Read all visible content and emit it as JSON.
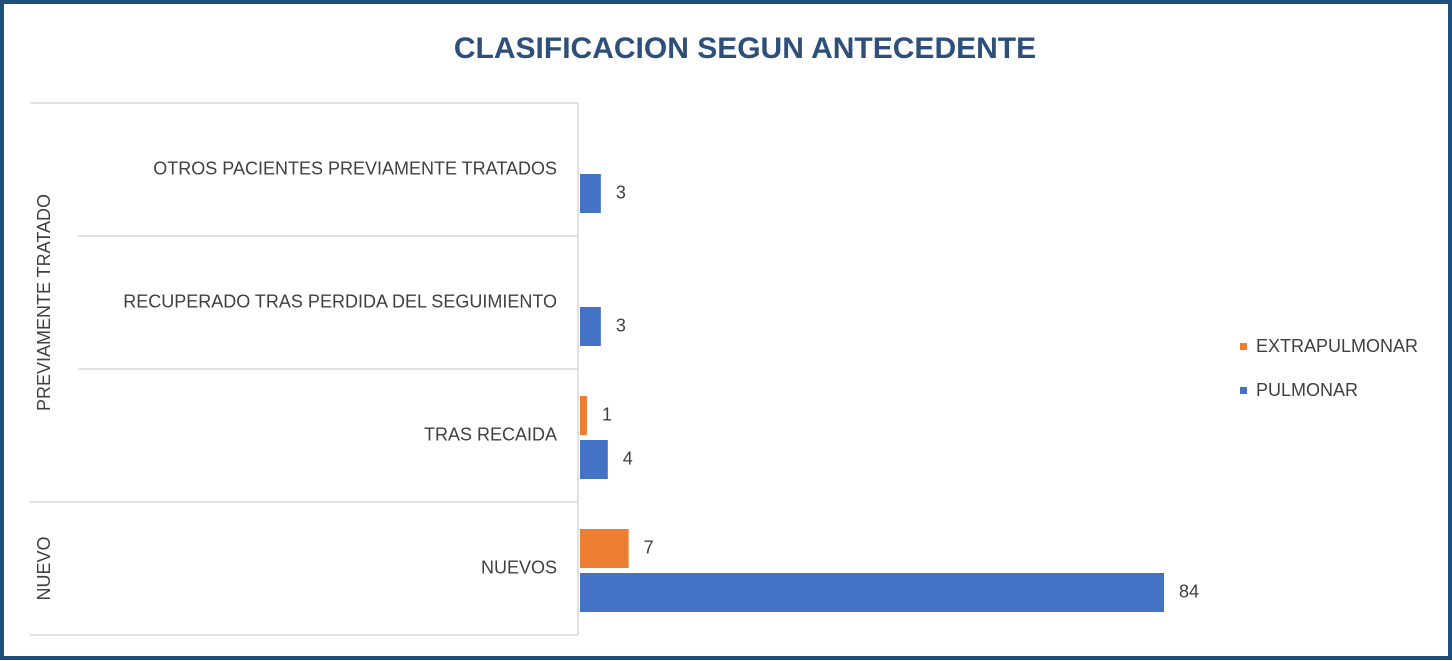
{
  "chart_data": {
    "type": "bar",
    "orientation": "horizontal",
    "title": "CLASIFICACION SEGUN ANTECEDENTE",
    "groups": [
      {
        "name": "PREVIAMENTE TRATADO",
        "categories": [
          "OTROS PACIENTES PREVIAMENTE TRATADOS",
          "RECUPERADO TRAS PERDIDA DEL SEGUIMIENTO",
          "TRAS RECAIDA"
        ]
      },
      {
        "name": "NUEVO",
        "categories": [
          "NUEVOS"
        ]
      }
    ],
    "series": [
      {
        "name": "EXTRAPULMONAR",
        "color": "#ed7d31",
        "values": [
          null,
          null,
          1,
          7
        ]
      },
      {
        "name": "PULMONAR",
        "color": "#4472c4",
        "values": [
          3,
          3,
          4,
          84
        ]
      }
    ],
    "legend": "right"
  }
}
